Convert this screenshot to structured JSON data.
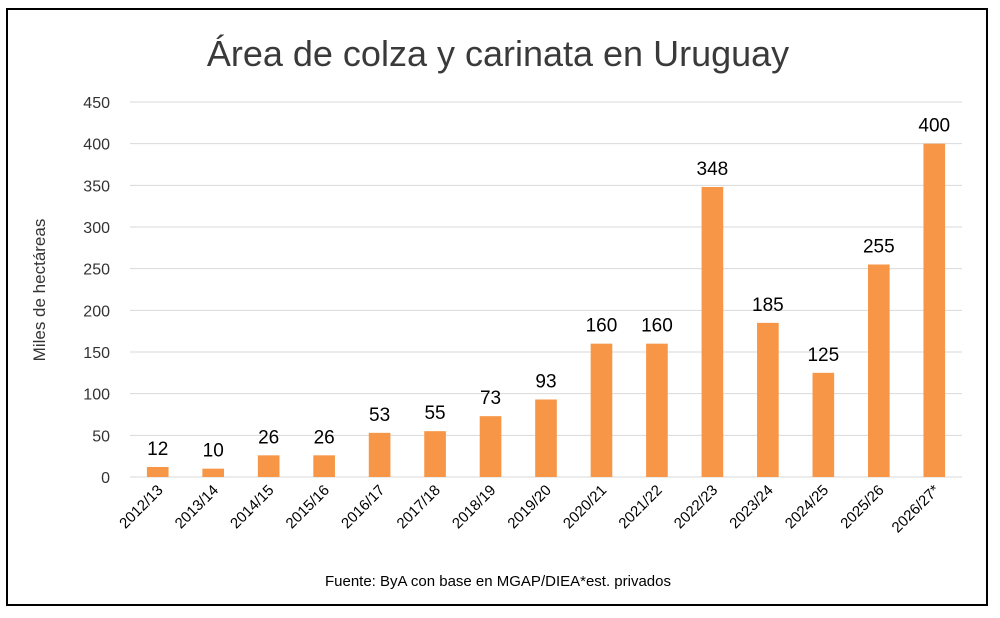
{
  "chart_data": {
    "type": "bar",
    "title": "Área de colza y carinata en Uruguay",
    "xlabel": "",
    "ylabel": "Miles de hectáreas",
    "ylim": [
      0,
      450
    ],
    "yticks": [
      0,
      50,
      100,
      150,
      200,
      250,
      300,
      350,
      400,
      450
    ],
    "grid": true,
    "categories": [
      "2012/13",
      "2013/14",
      "2014/15",
      "2015/16",
      "2016/17",
      "2017/18",
      "2018/19",
      "2019/20",
      "2020/21",
      "2021/22",
      "2022/23",
      "2023/24",
      "2024/25",
      "2025/26",
      "2026/27*"
    ],
    "values": [
      12,
      10,
      26,
      26,
      53,
      55,
      73,
      93,
      160,
      160,
      348,
      185,
      125,
      255,
      400
    ],
    "bar_color": "#F79646",
    "grid_color": "#D9D9D9",
    "source": "Fuente: ByA con base en MGAP/DIEA*est. privados"
  }
}
